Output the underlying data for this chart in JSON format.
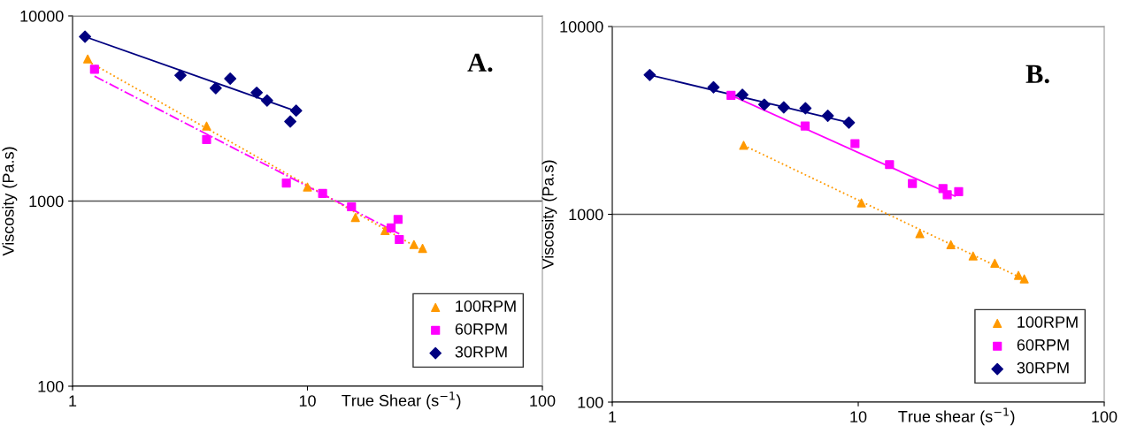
{
  "chart_data": [
    {
      "type": "scatter",
      "xlabel": "True Shear (s$^{−1}$)",
      "ylabel": "Viscosity (Pa.s)",
      "annotations": [
        "A."
      ],
      "log": "xy",
      "xlim": [
        1,
        100
      ],
      "xticks": [
        1,
        10,
        100
      ],
      "ylim": [
        100,
        10000
      ],
      "yticks": [
        100,
        1000,
        10000
      ],
      "grid": "y",
      "legend": "bottom right",
      "series": [
        {
          "name": "100RPM",
          "marker": "triangle",
          "color": "#ff9900",
          "x": [
            1.16,
            3.72,
            10.0,
            16.0,
            21.4,
            28.4,
            30.9
          ],
          "values": [
            5850,
            2540,
            1190,
            815,
            692,
            582,
            555
          ]
        },
        {
          "name": "60RPM",
          "marker": "square",
          "color": "#ff00ff",
          "x": [
            1.24,
            3.72,
            8.13,
            11.6,
            15.4,
            22.7,
            24.3,
            24.6
          ],
          "values": [
            5150,
            2150,
            1250,
            1100,
            931,
            716,
            796,
            620
          ]
        },
        {
          "name": "30RPM",
          "marker": "diamond",
          "color": "#000080",
          "x": [
            1.13,
            2.88,
            4.07,
            4.69,
            6.08,
            6.73,
            8.95,
            8.45
          ],
          "values": [
            7720,
            4770,
            4070,
            4580,
            3850,
            3490,
            3080,
            2690
          ]
        },
        {
          "type": "line",
          "marker": "none",
          "line_style": "dotted",
          "color": "#ff9900",
          "x": [
            1.16,
            30.9
          ],
          "values": [
            5700,
            541
          ]
        },
        {
          "type": "line",
          "marker": "none",
          "line_style": "dashdot",
          "color": "#ff00ff",
          "x": [
            1.24,
            24.6
          ],
          "values": [
            4730,
            665
          ]
        },
        {
          "type": "line",
          "marker": "none",
          "line_style": "solid",
          "color": "#000080",
          "x": [
            1.13,
            8.95
          ],
          "values": [
            7720,
            3060
          ]
        }
      ]
    },
    {
      "type": "scatter",
      "xlabel": "True shear (s$^{−1}$)",
      "ylabel": "Viscosity (Pa.s)",
      "annotations": [
        "B."
      ],
      "log": "xy",
      "xlim": [
        1,
        100
      ],
      "xticks": [
        1,
        10,
        100
      ],
      "ylim": [
        100,
        10000
      ],
      "yticks": [
        100,
        1000,
        10000
      ],
      "grid": "y",
      "legend": "bottom right",
      "series": [
        {
          "name": "100RPM",
          "marker": "triangle",
          "color": "#ff9900",
          "x": [
            3.42,
            10.3,
            17.8,
            23.8,
            29.3,
            35.9,
            44.8,
            47.3
          ],
          "values": [
            2330,
            1150,
            789,
            689,
            600,
            549,
            473,
            453
          ]
        },
        {
          "name": "60RPM",
          "marker": "square",
          "color": "#ff00ff",
          "x": [
            3.04,
            6.08,
            9.7,
            13.4,
            16.6,
            22.1,
            23.0,
            25.6
          ],
          "values": [
            4300,
            2950,
            2380,
            1840,
            1460,
            1370,
            1270,
            1320
          ]
        },
        {
          "name": "30RPM",
          "marker": "diamond",
          "color": "#000080",
          "x": [
            1.42,
            2.58,
            3.38,
            4.15,
            4.98,
            6.1,
            7.52,
            9.16
          ],
          "values": [
            5520,
            4750,
            4330,
            3840,
            3710,
            3670,
            3350,
            3080
          ]
        },
        {
          "type": "line",
          "marker": "none",
          "line_style": "dotted",
          "color": "#ff9900",
          "x": [
            3.42,
            47.3
          ],
          "values": [
            2330,
            450
          ]
        },
        {
          "type": "line",
          "marker": "none",
          "line_style": "solid",
          "color": "#ff00ff",
          "x": [
            3.04,
            24.7
          ],
          "values": [
            4300,
            1250
          ]
        },
        {
          "type": "line",
          "marker": "none",
          "line_style": "solid",
          "color": "#000080",
          "x": [
            1.42,
            9.16
          ],
          "values": [
            5520,
            3080
          ]
        }
      ]
    }
  ]
}
